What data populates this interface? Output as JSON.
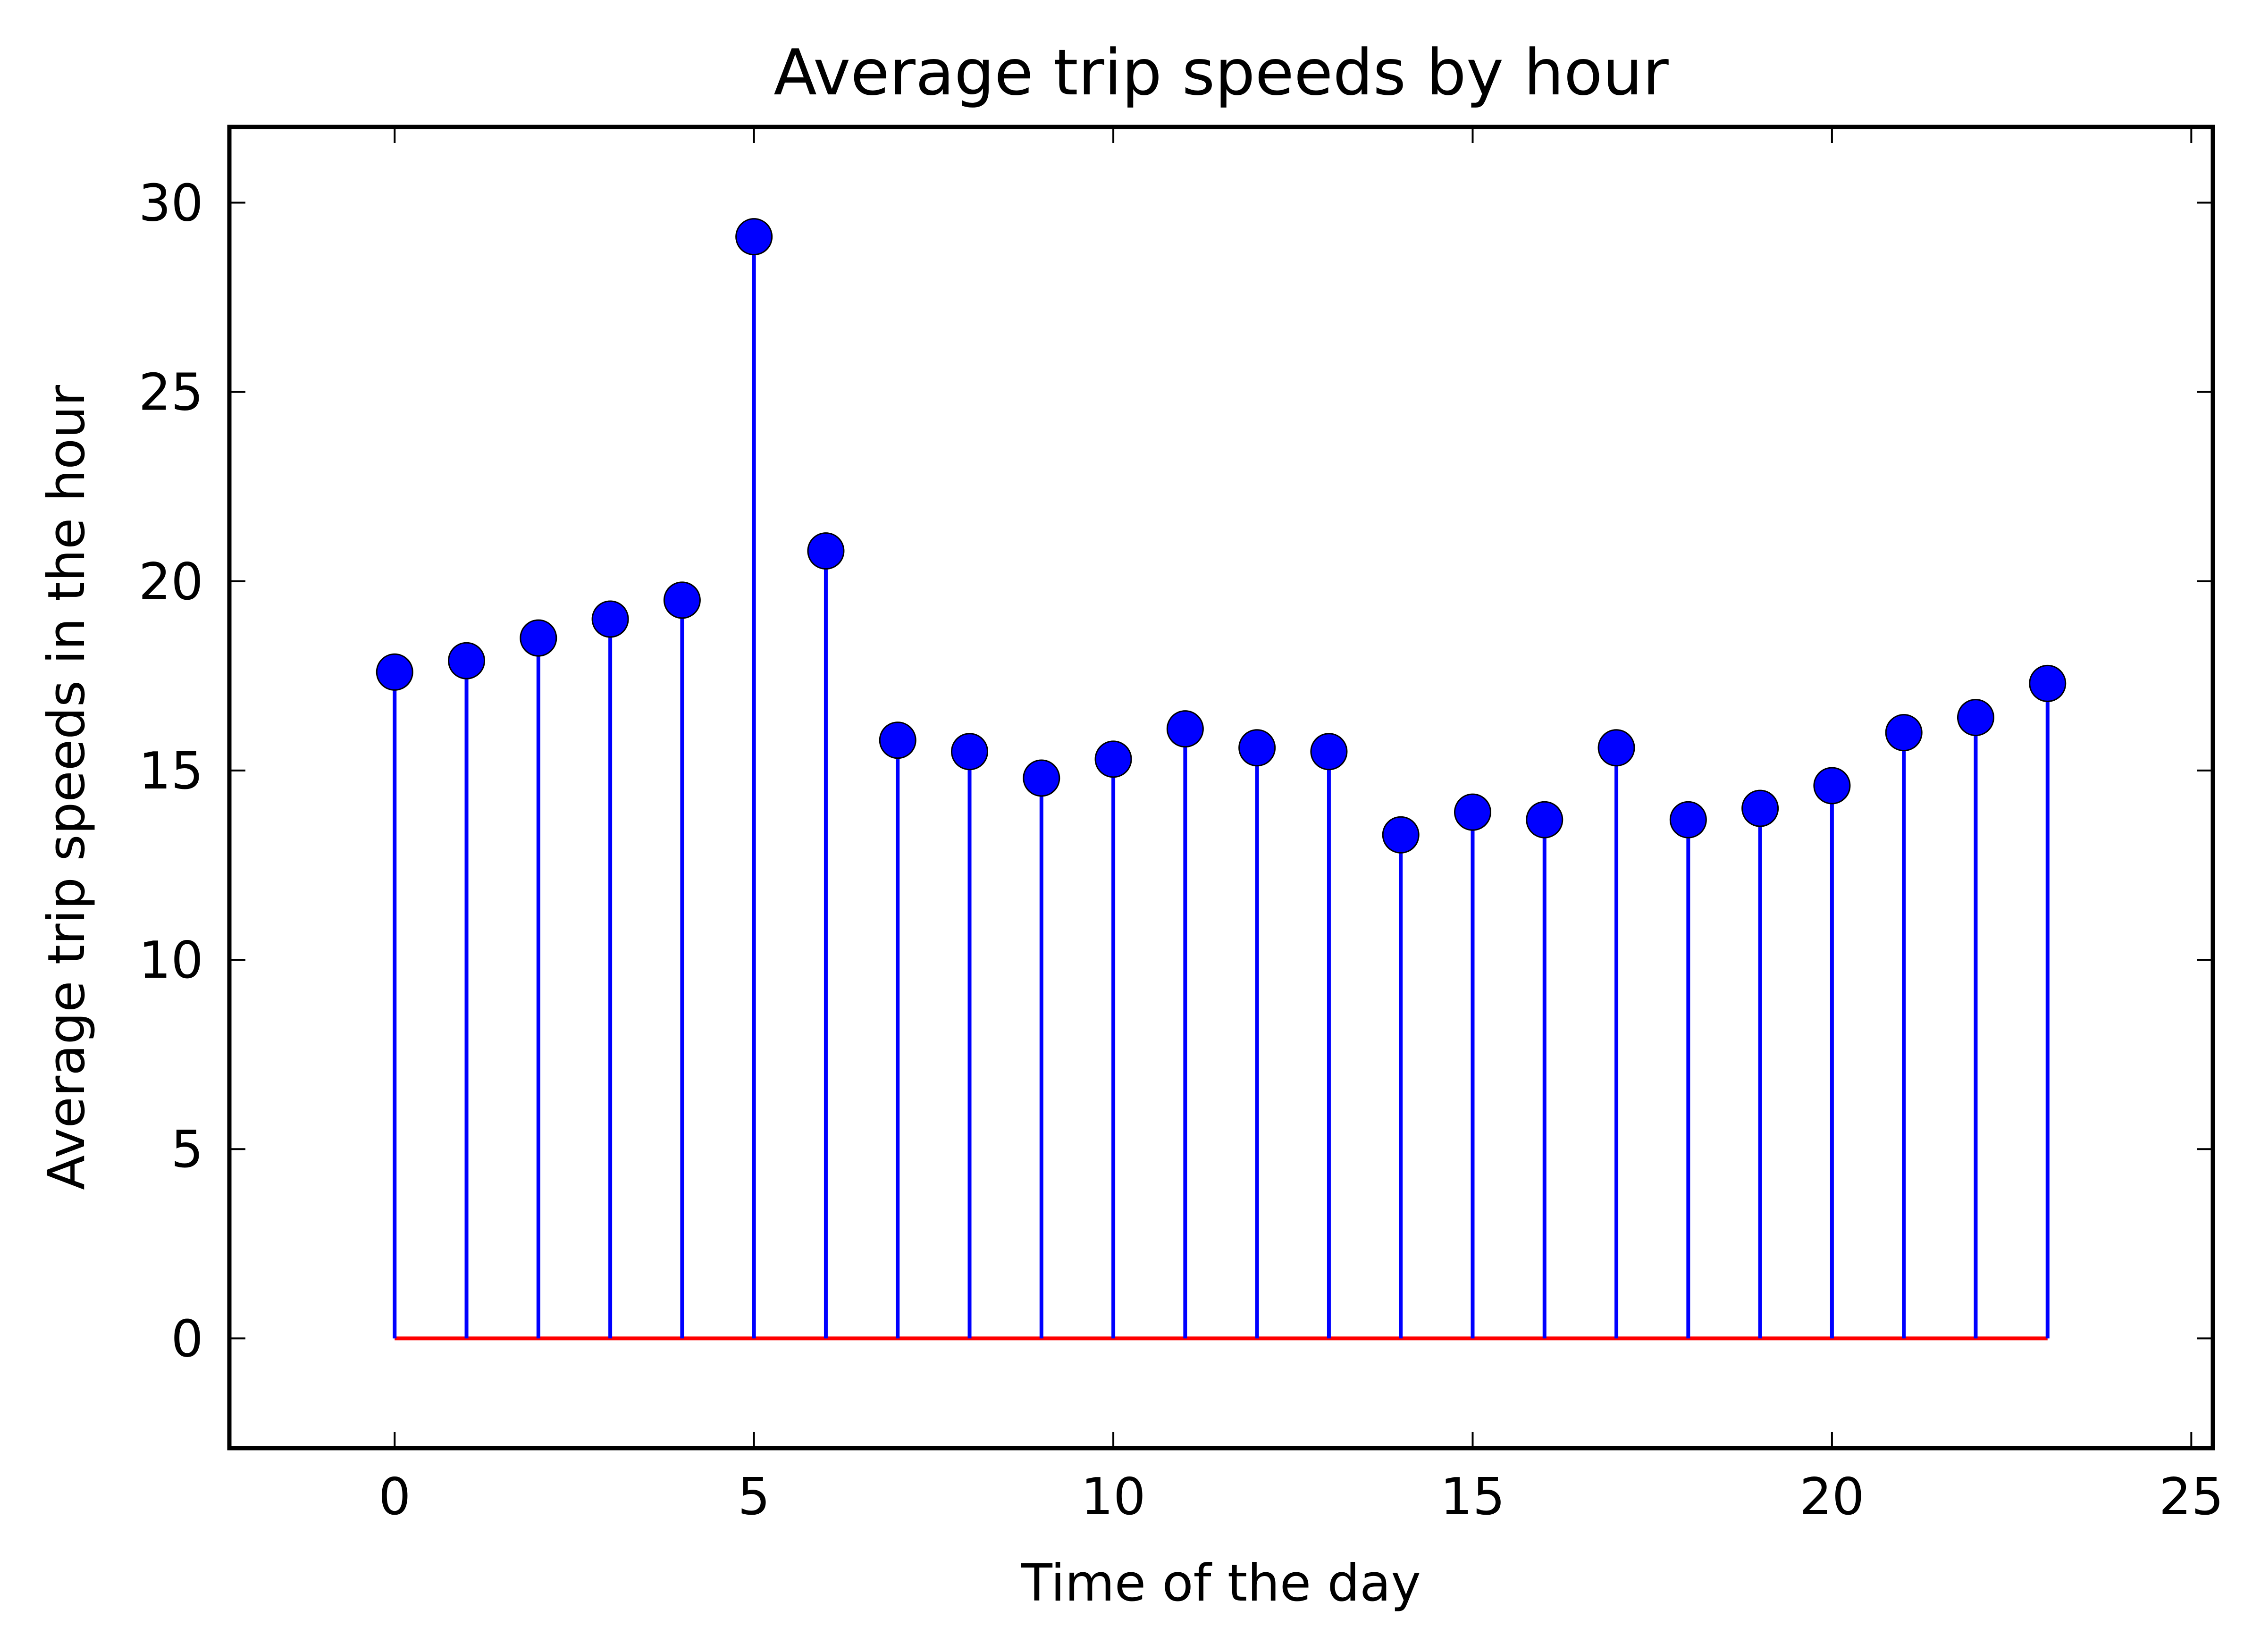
{
  "chart_data": {
    "type": "stem",
    "title": "Average trip speeds by hour",
    "xlabel": "Time of the day",
    "ylabel": "Average trip speeds in the hour",
    "xlim": [
      -2.3,
      25.3
    ],
    "ylim": [
      -2.9,
      32
    ],
    "xticks": [
      0,
      5,
      10,
      15,
      20,
      25
    ],
    "yticks": [
      0,
      5,
      10,
      15,
      20,
      25,
      30
    ],
    "grid": false,
    "legend": "none",
    "series": [
      {
        "x": [
          0,
          1,
          2,
          3,
          4,
          5,
          6,
          7,
          8,
          9,
          10,
          11,
          12,
          13,
          14,
          15,
          16,
          17,
          18,
          19,
          20,
          21,
          22,
          23
        ],
        "values": [
          17.6,
          17.9,
          18.5,
          19.0,
          19.5,
          29.1,
          20.8,
          15.8,
          15.5,
          14.8,
          15.3,
          16.1,
          15.6,
          15.5,
          13.3,
          13.9,
          13.7,
          15.6,
          13.7,
          14.0,
          14.6,
          16.0,
          16.4,
          17.3
        ],
        "stem_color": "#0000ff",
        "marker_color": "#0000ff",
        "baseline_color": "#ff0000"
      }
    ]
  }
}
